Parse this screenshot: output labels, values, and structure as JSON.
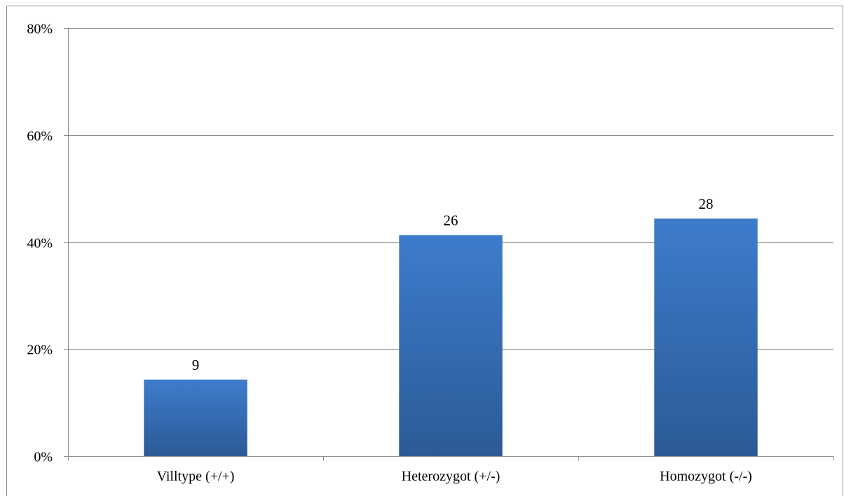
{
  "chart_data": {
    "type": "bar",
    "categories": [
      "Villtype (+/+)",
      "Heterozygot (+/-)",
      "Homozygot (-/-)"
    ],
    "values": [
      14.3,
      41.3,
      44.4
    ],
    "data_labels": [
      "9",
      "26",
      "28"
    ],
    "y_tick_labels": [
      "0%",
      "20%",
      "40%",
      "60%",
      "80%"
    ],
    "ylim": [
      0,
      80
    ],
    "y_unit": "%",
    "grid": true,
    "legend": "none",
    "colors": {
      "bar_top": "#3d7ccc",
      "bar_bottom": "#2c5a96",
      "grid": "#8c8c8c",
      "axis": "#8c8c8c",
      "text": "#000000"
    }
  }
}
